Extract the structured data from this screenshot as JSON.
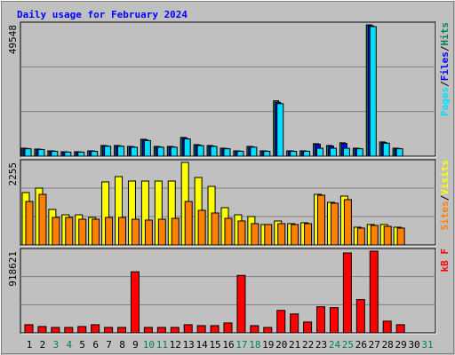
{
  "chart_data": {
    "type": "bar",
    "title": "Daily usage for February 2024",
    "categories": [
      "1",
      "2",
      "3",
      "4",
      "5",
      "6",
      "7",
      "8",
      "9",
      "10",
      "11",
      "12",
      "13",
      "14",
      "15",
      "16",
      "17",
      "18",
      "19",
      "20",
      "21",
      "22",
      "23",
      "24",
      "25",
      "26",
      "27",
      "28",
      "29",
      "30",
      "31"
    ],
    "category_colors": [
      "#000000",
      "#000000",
      "#00805c",
      "#00805c",
      "#000000",
      "#000000",
      "#000000",
      "#000000",
      "#000000",
      "#00805c",
      "#00805c",
      "#000000",
      "#000000",
      "#000000",
      "#000000",
      "#000000",
      "#00805c",
      "#00805c",
      "#000000",
      "#000000",
      "#000000",
      "#000000",
      "#000000",
      "#00805c",
      "#00805c",
      "#000000",
      "#000000",
      "#000000",
      "#000000",
      "#000000",
      "#00805c"
    ],
    "legend_separator": "/",
    "panels": [
      {
        "ylim": [
          0,
          49548
        ],
        "yticks": [
          49548
        ],
        "series": [
          {
            "name": "Pages",
            "color": "#00e0ff",
            "values": [
              2800,
              2500,
              1850,
              1550,
              1550,
              1850,
              3750,
              3750,
              3400,
              5900,
              3400,
              3400,
              6500,
              4000,
              3700,
              2800,
              1850,
              3400,
              1850,
              19800,
              1850,
              1850,
              3000,
              3000,
              3000,
              2800,
              48900,
              4900,
              2800,
              null,
              null
            ]
          },
          {
            "name": "Files",
            "color": "#0000ff",
            "values": [
              2900,
              2600,
              1950,
              1600,
              1600,
              1950,
              3900,
              3900,
              3550,
              6150,
              3550,
              3550,
              6800,
              4200,
              3850,
              2900,
              1950,
              3550,
              1950,
              20300,
              1950,
              1950,
              4500,
              3850,
              4800,
              2900,
              49200,
              5150,
              2900,
              null,
              null
            ]
          },
          {
            "name": "Hits",
            "color": "#00805c",
            "values": [
              3030,
              2700,
              2020,
              1690,
              1690,
              2020,
              4040,
              4040,
              3700,
              6400,
              3700,
              3700,
              7080,
              4380,
              4040,
              3030,
              2020,
              3700,
              2020,
              20900,
              2020,
              2020,
              4720,
              4040,
              5060,
              3030,
              49548,
              5390,
              3030,
              null,
              null
            ]
          }
        ]
      },
      {
        "ylim": [
          0,
          2255
        ],
        "yticks": [
          2255
        ],
        "series": [
          {
            "name": "Sites",
            "color": "#ff8000",
            "values": [
              1188,
              1382,
              752,
              752,
              703,
              703,
              752,
              752,
              703,
              679,
              703,
              727,
              1188,
              946,
              873,
              727,
              655,
              582,
              558,
              582,
              558,
              582,
              1358,
              1140,
              1237,
              461,
              534,
              509,
              461,
              null,
              null
            ]
          },
          {
            "name": "Visits",
            "color": "#ffff00",
            "values": [
              1431,
              1552,
              970,
              824,
              824,
              752,
              1722,
              1867,
              1746,
              1746,
              1746,
              1746,
              2255,
              1843,
              1600,
              1018,
              824,
              776,
              558,
              655,
              582,
              606,
              1382,
              1164,
              1334,
              485,
              558,
              558,
              485,
              null,
              null
            ]
          }
        ]
      },
      {
        "ylim": [
          0,
          918621
        ],
        "yticks": [
          918621
        ],
        "series": [
          {
            "name": "kB F",
            "color": "#ff0000",
            "values": [
              90850,
              70660,
              60570,
              60570,
              70660,
              90850,
              60570,
              60570,
              686460,
              60570,
              60570,
              60570,
              90850,
              80760,
              80760,
              111040,
              646070,
              80760,
              60570,
              252370,
              212000,
              121140,
              292750,
              282660,
              898440,
              373510,
              918621,
              131240,
              90850,
              null,
              null
            ]
          }
        ]
      }
    ]
  }
}
